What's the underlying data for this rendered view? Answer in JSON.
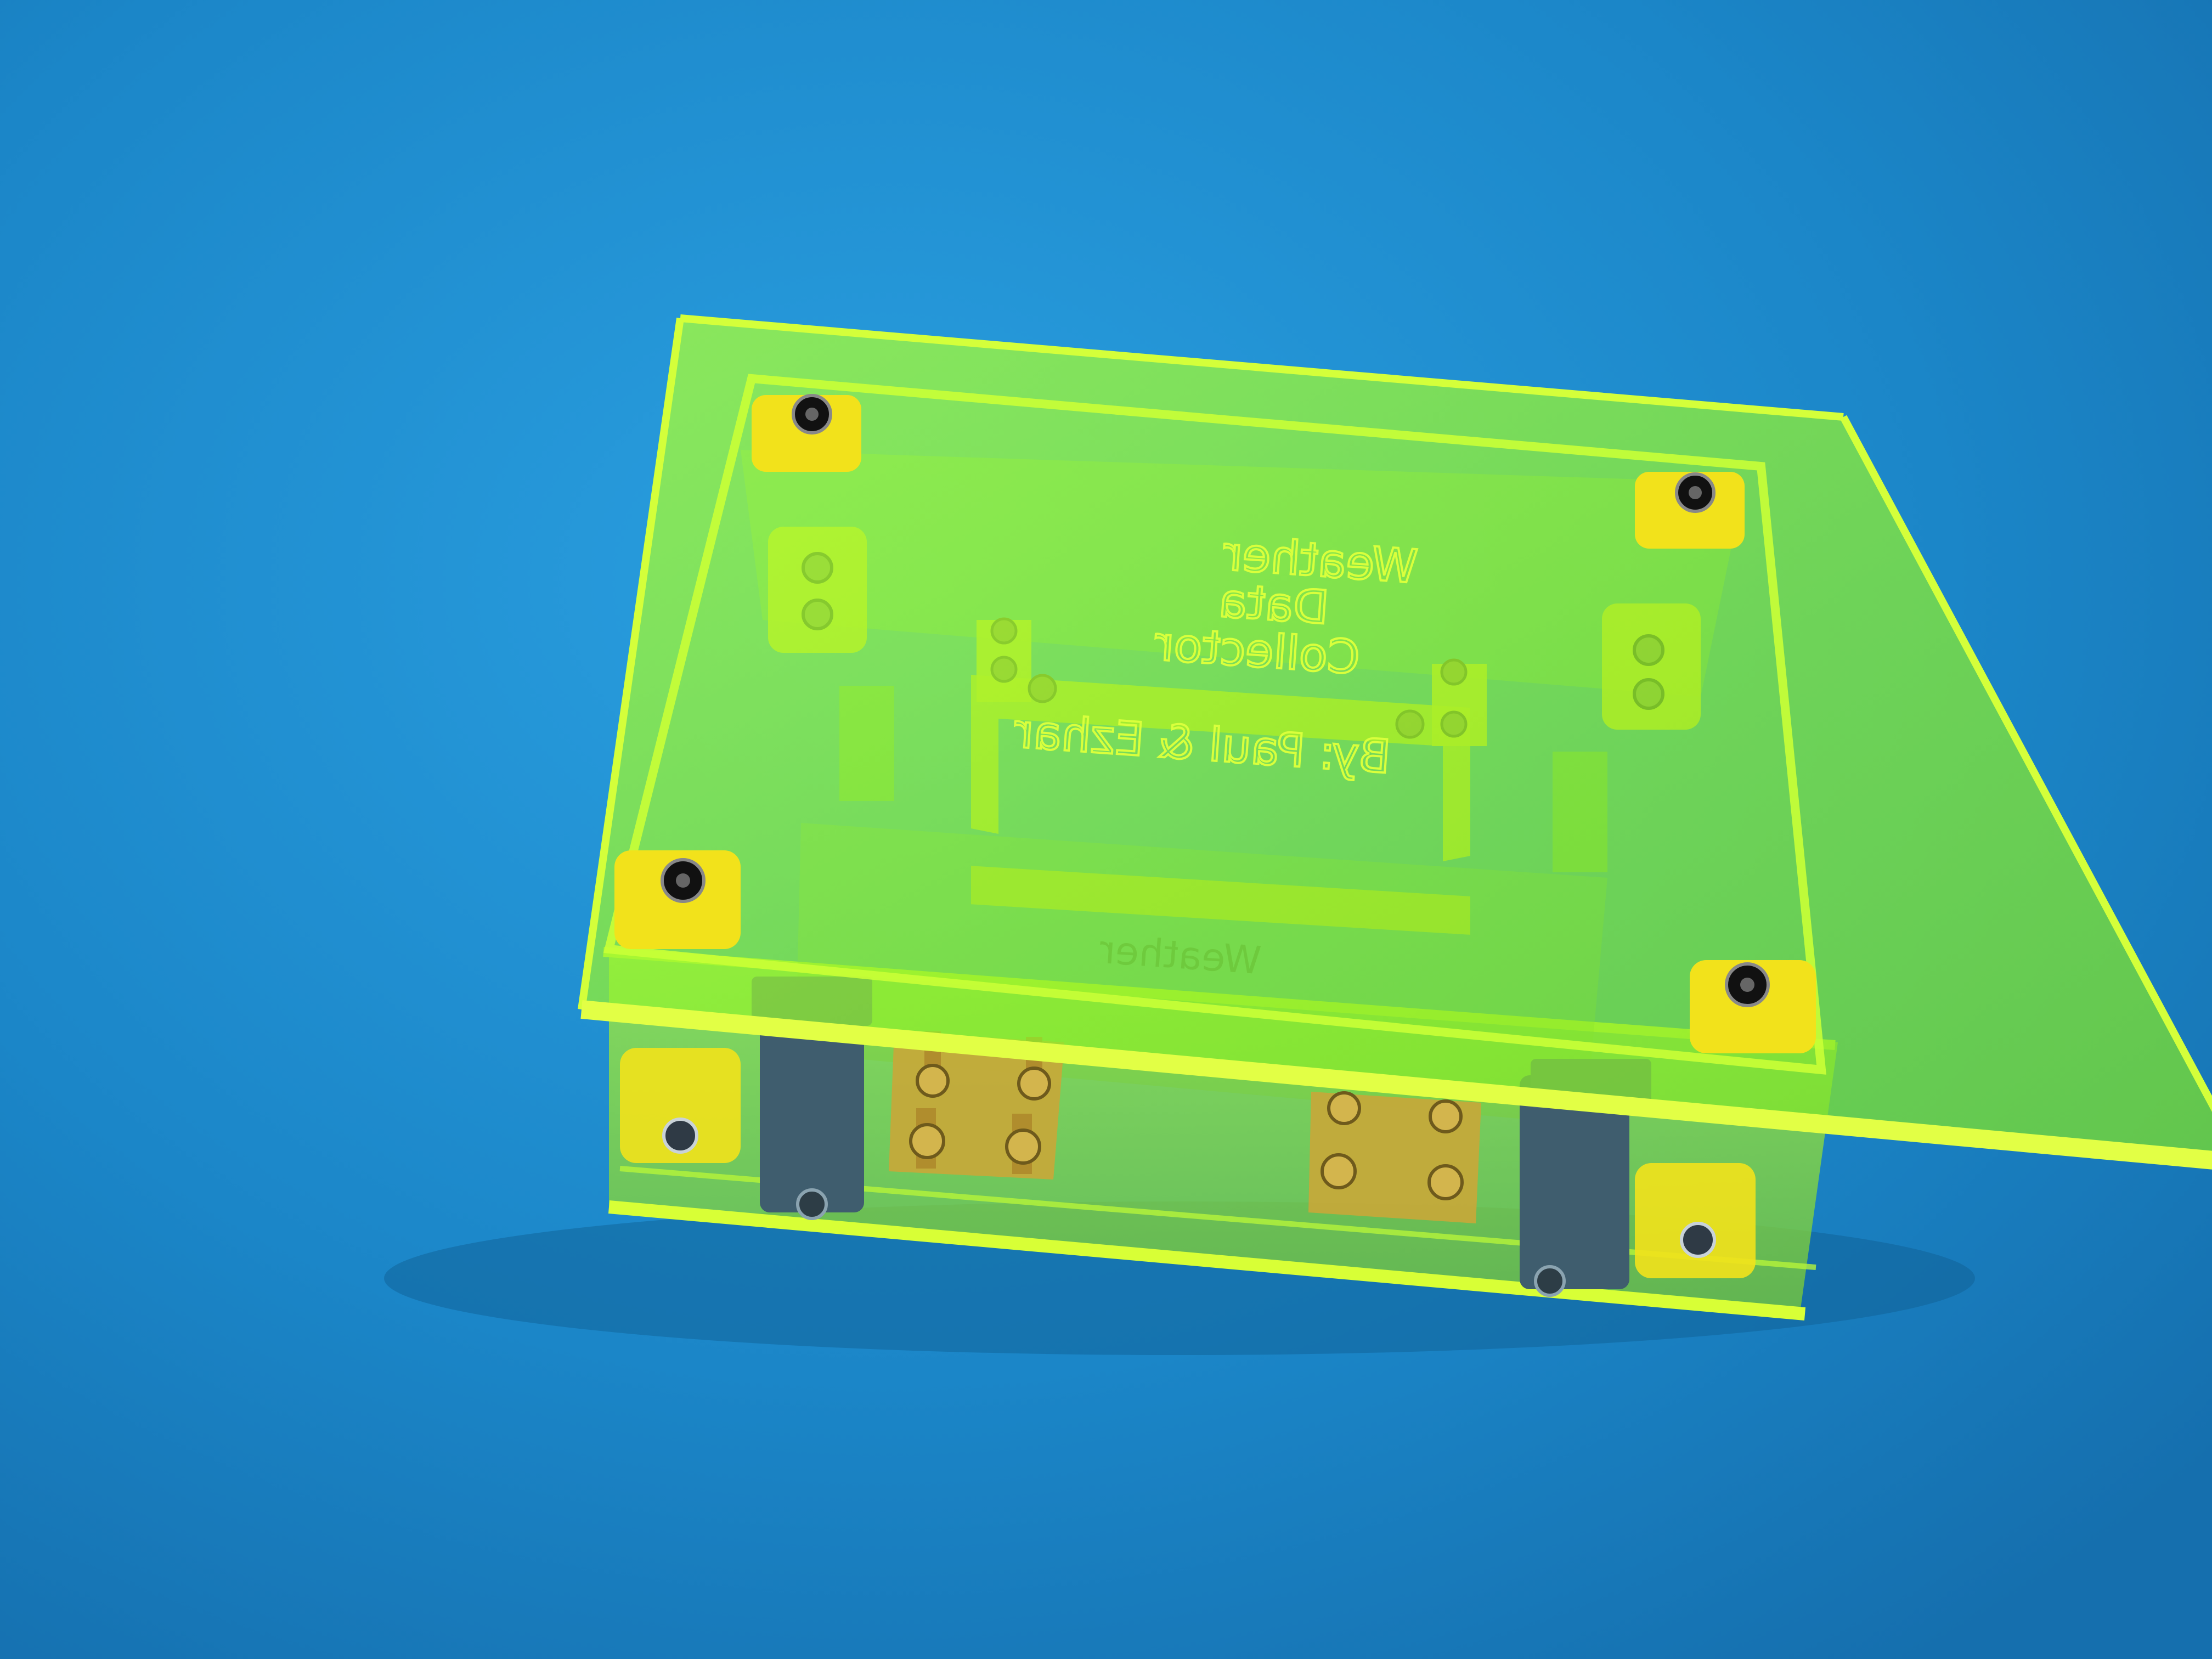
{
  "scene": {
    "background_color": "#1e8fd0",
    "acrylic_color": "#9dff1e",
    "acrylic_edge_color": "#c6ff2a",
    "bracket_color": "#f2e21b",
    "terminal_color": "#c7a83a",
    "clip_color": "#3b5566"
  },
  "engraving": {
    "line1": "Weather",
    "line2": "Data",
    "line3": "Collector",
    "line4": "By: Paul & Ezhar"
  }
}
